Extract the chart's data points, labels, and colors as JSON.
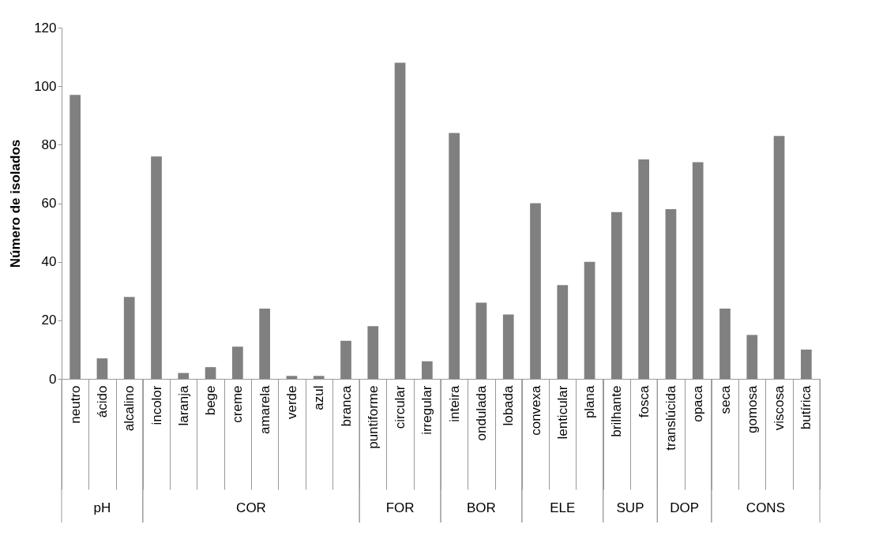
{
  "chart_data": {
    "type": "bar",
    "ylabel": "Número de isolados",
    "categories": [
      "neutro",
      "ácido",
      "alcalino",
      "incolor",
      "laranja",
      "bege",
      "creme",
      "amarela",
      "verde",
      "azul",
      "branca",
      "puntiforme",
      "circular",
      "irregular",
      "inteira",
      "ondulada",
      "lobada",
      "convexa",
      "lenticular",
      "plana",
      "brilhante",
      "fosca",
      "translúcida",
      "opaca",
      "seca",
      "gomosa",
      "viscosa",
      "butírica"
    ],
    "values": [
      97,
      7,
      28,
      76,
      2,
      4,
      11,
      24,
      1,
      1,
      13,
      18,
      108,
      6,
      84,
      26,
      22,
      60,
      32,
      40,
      57,
      75,
      58,
      74,
      24,
      15,
      83,
      10
    ],
    "color": "#808080",
    "ylim": [
      0,
      120
    ],
    "yticks": [
      0,
      20,
      40,
      60,
      80,
      100,
      120
    ],
    "annotations": [
      "pH",
      "COR",
      "FOR",
      "BOR",
      "ELE",
      "SUP",
      "DOP",
      "CONS"
    ]
  }
}
